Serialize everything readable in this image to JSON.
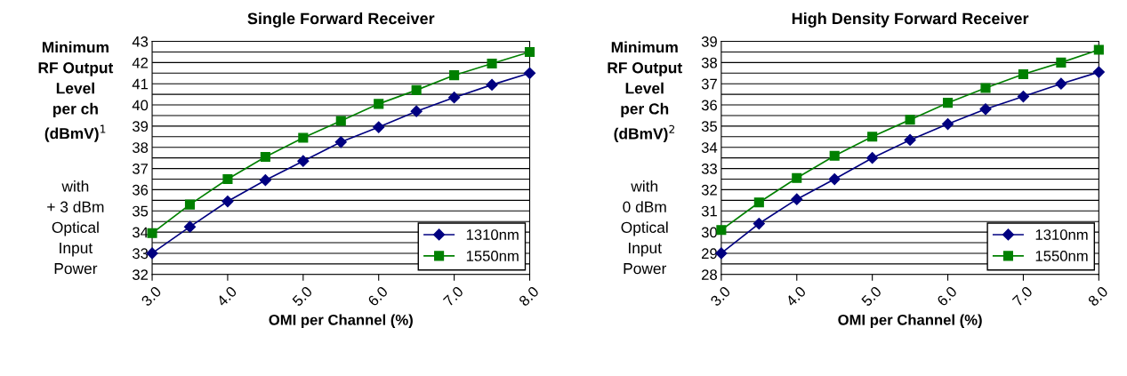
{
  "chart_data": [
    {
      "type": "line",
      "title": "Single Forward Receiver",
      "xlabel": "OMI per Channel (%)",
      "ylabel": "Minimum\nRF Output\nLevel\nper ch\n(dBmV)$^{1}$",
      "annotations": [
        "with\n+ 3 dBm\nOptical\nInput\nPower"
      ],
      "x": [
        3.0,
        3.5,
        4.0,
        4.5,
        5.0,
        5.5,
        6.0,
        6.5,
        7.0,
        7.5,
        8.0
      ],
      "series": [
        {
          "name": "1310nm",
          "color": "#000080",
          "marker": "diamond",
          "values": [
            33.0,
            34.25,
            35.45,
            36.45,
            37.35,
            38.25,
            38.95,
            39.7,
            40.35,
            40.95,
            41.5
          ]
        },
        {
          "name": "1550nm",
          "color": "#008000",
          "marker": "square",
          "values": [
            33.95,
            35.3,
            36.5,
            37.55,
            38.45,
            39.25,
            40.05,
            40.7,
            41.4,
            41.95,
            42.5
          ]
        }
      ],
      "xlim": [
        3,
        8
      ],
      "xticks": [
        {
          "value": 3,
          "label": "3.0"
        },
        {
          "value": 4,
          "label": "4.0"
        },
        {
          "value": 5,
          "label": "5.0"
        },
        {
          "value": 6,
          "label": "6.0"
        },
        {
          "value": 7,
          "label": "7.0"
        },
        {
          "value": 8,
          "label": "8.0"
        }
      ],
      "ylim": [
        32,
        43
      ],
      "yticks": [
        32,
        {
          "value": 32.5,
          "label": null
        },
        33,
        {
          "value": 33.5,
          "label": null
        },
        34,
        {
          "value": 34.5,
          "label": null
        },
        35,
        {
          "value": 35.5,
          "label": null
        },
        36,
        {
          "value": 36.5,
          "label": null
        },
        37,
        {
          "value": 37.5,
          "label": null
        },
        38,
        {
          "value": 38.5,
          "label": null
        },
        39,
        {
          "value": 39.5,
          "label": null
        },
        40,
        {
          "value": 40.5,
          "label": null
        },
        41,
        {
          "value": 41.5,
          "label": null
        },
        42,
        {
          "value": 42.5,
          "label": null
        },
        43
      ],
      "grid": "y",
      "legend": "bottom right"
    },
    {
      "type": "line",
      "title": "High Density Forward Receiver",
      "xlabel": "OMI per Channel (%)",
      "ylabel": "Minimum\nRF Output\nLevel\nper Ch\n(dBmV)$^{2}$",
      "annotations": [
        "with\n0 dBm\nOptical\nInput\nPower"
      ],
      "x": [
        3.0,
        3.5,
        4.0,
        4.5,
        5.0,
        5.5,
        6.0,
        6.5,
        7.0,
        7.5,
        8.0
      ],
      "series": [
        {
          "name": "1310nm",
          "color": "#000080",
          "marker": "diamond",
          "values": [
            29.0,
            30.4,
            31.55,
            32.5,
            33.5,
            34.35,
            35.1,
            35.8,
            36.4,
            37.0,
            37.55
          ]
        },
        {
          "name": "1550nm",
          "color": "#008000",
          "marker": "square",
          "values": [
            30.1,
            31.4,
            32.55,
            33.6,
            34.5,
            35.3,
            36.1,
            36.8,
            37.45,
            38.0,
            38.6
          ]
        }
      ],
      "xlim": [
        3,
        8
      ],
      "xticks": [
        {
          "value": 3,
          "label": "3.0"
        },
        {
          "value": 4,
          "label": "4.0"
        },
        {
          "value": 5,
          "label": "5.0"
        },
        {
          "value": 6,
          "label": "6.0"
        },
        {
          "value": 7,
          "label": "7.0"
        },
        {
          "value": 8,
          "label": "8.0"
        }
      ],
      "ylim": [
        28,
        39
      ],
      "yticks": [
        28,
        {
          "value": 28.5,
          "label": null
        },
        29,
        {
          "value": 29.5,
          "label": null
        },
        30,
        {
          "value": 30.5,
          "label": null
        },
        31,
        {
          "value": 31.5,
          "label": null
        },
        32,
        {
          "value": 32.5,
          "label": null
        },
        33,
        {
          "value": 33.5,
          "label": null
        },
        34,
        {
          "value": 34.5,
          "label": null
        },
        35,
        {
          "value": 35.5,
          "label": null
        },
        36,
        {
          "value": 36.5,
          "label": null
        },
        37,
        {
          "value": 37.5,
          "label": null
        },
        38,
        {
          "value": 38.5,
          "label": null
        },
        39
      ],
      "grid": "y",
      "legend": "bottom right"
    }
  ]
}
